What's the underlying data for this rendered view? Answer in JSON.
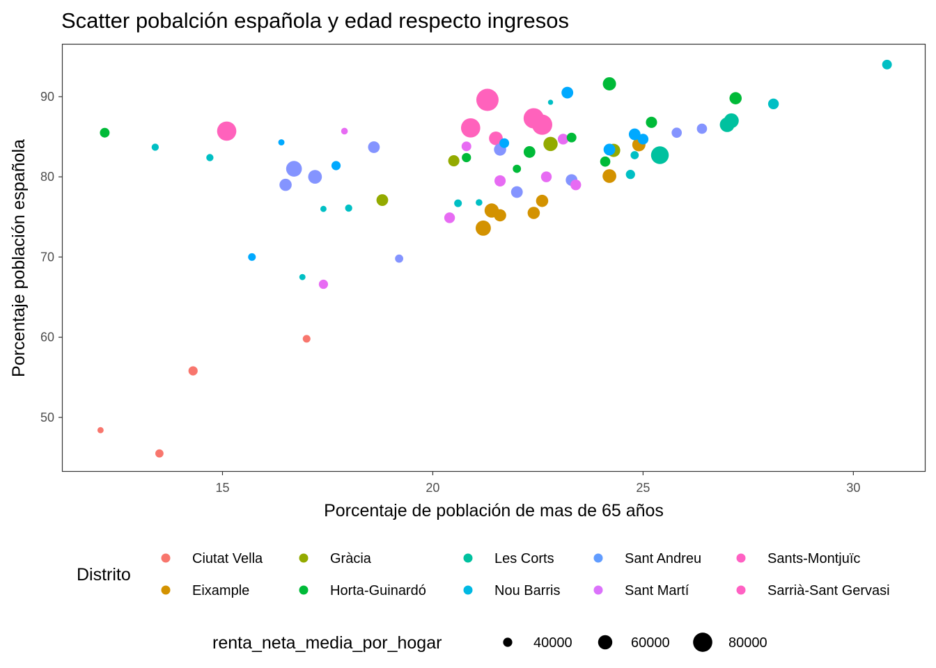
{
  "chart_data": {
    "type": "scatter",
    "title": "Scatter pobalción española y edad respecto ingresos",
    "xlabel": "Porcentaje de población de mas de 65 años",
    "ylabel": "Porcentaje población española",
    "xlim": [
      11.2,
      31.7
    ],
    "ylim": [
      43.3,
      96.5
    ],
    "xticks": [
      15,
      20,
      25,
      30
    ],
    "yticks": [
      50,
      60,
      70,
      80,
      90
    ],
    "grid": false,
    "legend_position": "bottom",
    "color_legend": {
      "title": "Distrito",
      "entries": [
        {
          "name": "Ciutat Vella",
          "color": "#F8766D"
        },
        {
          "name": "Eixample",
          "color": "#D39200"
        },
        {
          "name": "Gràcia",
          "color": "#93AA00"
        },
        {
          "name": "Horta-Guinardó",
          "color": "#00BA38"
        },
        {
          "name": "Les Corts",
          "color": "#00C19F"
        },
        {
          "name": "Nou Barris",
          "color": "#00B9E3"
        },
        {
          "name": "Sant Andreu",
          "color": "#619CFF"
        },
        {
          "name": "Sant Martí",
          "color": "#DB72FB"
        },
        {
          "name": "Sants-Montjuïc",
          "color": "#FF61C3"
        },
        {
          "name": "Sarrià-Sant Gervasi",
          "color": "#FF61C3"
        }
      ]
    },
    "size_legend": {
      "title": "renta_neta_media_por_hogar",
      "entries": [
        {
          "label": "40000",
          "value": 40000
        },
        {
          "label": "60000",
          "value": 60000
        },
        {
          "label": "80000",
          "value": 80000
        }
      ]
    },
    "series": [
      {
        "name": "Ciutat Vella",
        "color": "#F8766D",
        "points": [
          {
            "x": 12.1,
            "y": 48.4,
            "renta": 28000
          },
          {
            "x": 13.5,
            "y": 45.5,
            "renta": 36000
          },
          {
            "x": 14.3,
            "y": 55.8,
            "renta": 40000
          },
          {
            "x": 17.0,
            "y": 59.8,
            "renta": 34000
          }
        ]
      },
      {
        "name": "Eixample",
        "color": "#D39200",
        "points": [
          {
            "x": 21.2,
            "y": 73.6,
            "renta": 64000
          },
          {
            "x": 21.4,
            "y": 75.8,
            "renta": 60000
          },
          {
            "x": 21.6,
            "y": 75.2,
            "renta": 52000
          },
          {
            "x": 22.4,
            "y": 75.5,
            "renta": 52000
          },
          {
            "x": 22.6,
            "y": 77.0,
            "renta": 52000
          },
          {
            "x": 24.2,
            "y": 80.1,
            "renta": 58000
          },
          {
            "x": 24.9,
            "y": 84.0,
            "renta": 56000
          }
        ]
      },
      {
        "name": "Gràcia",
        "color": "#93AA00",
        "points": [
          {
            "x": 18.8,
            "y": 77.1,
            "renta": 50000
          },
          {
            "x": 20.5,
            "y": 82.0,
            "renta": 48000
          },
          {
            "x": 22.8,
            "y": 84.1,
            "renta": 60000
          },
          {
            "x": 24.3,
            "y": 83.3,
            "renta": 56000
          }
        ]
      },
      {
        "name": "Horta-Guinardó",
        "color": "#00BA38",
        "points": [
          {
            "x": 12.2,
            "y": 85.5,
            "renta": 42000
          },
          {
            "x": 20.8,
            "y": 82.4,
            "renta": 40000
          },
          {
            "x": 22.0,
            "y": 81.0,
            "renta": 36000
          },
          {
            "x": 22.3,
            "y": 83.1,
            "renta": 50000
          },
          {
            "x": 23.3,
            "y": 84.9,
            "renta": 42000
          },
          {
            "x": 24.1,
            "y": 81.9,
            "renta": 44000
          },
          {
            "x": 24.2,
            "y": 91.6,
            "renta": 56000
          },
          {
            "x": 25.2,
            "y": 86.8,
            "renta": 48000
          },
          {
            "x": 27.2,
            "y": 89.8,
            "renta": 52000
          }
        ]
      },
      {
        "name": "Les Corts",
        "color": "#00C19F",
        "points": [
          {
            "x": 25.4,
            "y": 82.7,
            "renta": 74000
          },
          {
            "x": 27.0,
            "y": 86.5,
            "renta": 62000
          },
          {
            "x": 27.1,
            "y": 87.0,
            "renta": 62000
          }
        ]
      },
      {
        "name": "Nou Barris",
        "color": "#00BFC4",
        "points": [
          {
            "x": 13.4,
            "y": 83.7,
            "renta": 32000
          },
          {
            "x": 14.7,
            "y": 82.4,
            "renta": 32000
          },
          {
            "x": 16.9,
            "y": 67.5,
            "renta": 28000
          },
          {
            "x": 17.4,
            "y": 76.0,
            "renta": 28000
          },
          {
            "x": 18.0,
            "y": 76.1,
            "renta": 32000
          },
          {
            "x": 20.6,
            "y": 76.7,
            "renta": 34000
          },
          {
            "x": 21.1,
            "y": 76.8,
            "renta": 30000
          },
          {
            "x": 22.8,
            "y": 89.3,
            "renta": 24000
          },
          {
            "x": 24.7,
            "y": 80.3,
            "renta": 40000
          },
          {
            "x": 24.8,
            "y": 82.7,
            "renta": 36000
          },
          {
            "x": 28.1,
            "y": 89.1,
            "renta": 46000
          },
          {
            "x": 30.8,
            "y": 94.0,
            "renta": 42000
          }
        ]
      },
      {
        "name": "Sant Andreu",
        "color": "#00A9FF",
        "points": [
          {
            "x": 15.7,
            "y": 70.0,
            "renta": 34000
          },
          {
            "x": 16.4,
            "y": 84.3,
            "renta": 28000
          },
          {
            "x": 17.7,
            "y": 81.4,
            "renta": 40000
          },
          {
            "x": 21.7,
            "y": 84.2,
            "renta": 42000
          },
          {
            "x": 23.2,
            "y": 90.5,
            "renta": 50000
          },
          {
            "x": 24.2,
            "y": 83.4,
            "renta": 50000
          },
          {
            "x": 24.8,
            "y": 85.3,
            "renta": 50000
          },
          {
            "x": 25.0,
            "y": 84.7,
            "renta": 46000
          }
        ]
      },
      {
        "name": "Sant Martí",
        "color": "#8494FF",
        "points": [
          {
            "x": 16.5,
            "y": 79.0,
            "renta": 52000
          },
          {
            "x": 16.7,
            "y": 81.0,
            "renta": 66000
          },
          {
            "x": 17.2,
            "y": 80.0,
            "renta": 58000
          },
          {
            "x": 18.6,
            "y": 83.7,
            "renta": 50000
          },
          {
            "x": 19.2,
            "y": 69.8,
            "renta": 36000
          },
          {
            "x": 21.6,
            "y": 83.4,
            "renta": 52000
          },
          {
            "x": 22.0,
            "y": 78.1,
            "renta": 50000
          },
          {
            "x": 23.3,
            "y": 79.6,
            "renta": 50000
          },
          {
            "x": 25.8,
            "y": 85.5,
            "renta": 44000
          },
          {
            "x": 26.4,
            "y": 86.0,
            "renta": 44000
          }
        ]
      },
      {
        "name": "Sants-Montjuïc",
        "color": "#E76BF3",
        "points": [
          {
            "x": 17.4,
            "y": 66.6,
            "renta": 40000
          },
          {
            "x": 17.9,
            "y": 85.7,
            "renta": 30000
          },
          {
            "x": 20.4,
            "y": 74.9,
            "renta": 46000
          },
          {
            "x": 20.8,
            "y": 83.8,
            "renta": 42000
          },
          {
            "x": 21.6,
            "y": 79.5,
            "renta": 48000
          },
          {
            "x": 22.7,
            "y": 80.0,
            "renta": 46000
          },
          {
            "x": 23.1,
            "y": 84.7,
            "renta": 46000
          },
          {
            "x": 23.4,
            "y": 79.0,
            "renta": 46000
          }
        ]
      },
      {
        "name": "Sarrià-Sant Gervasi",
        "color": "#FF62BC",
        "points": [
          {
            "x": 15.1,
            "y": 85.7,
            "renta": 80000
          },
          {
            "x": 20.9,
            "y": 86.1,
            "renta": 80000
          },
          {
            "x": 21.3,
            "y": 89.6,
            "renta": 92000
          },
          {
            "x": 21.5,
            "y": 84.8,
            "renta": 58000
          },
          {
            "x": 22.4,
            "y": 87.3,
            "renta": 84000
          },
          {
            "x": 22.6,
            "y": 86.5,
            "renta": 84000
          }
        ]
      }
    ]
  }
}
